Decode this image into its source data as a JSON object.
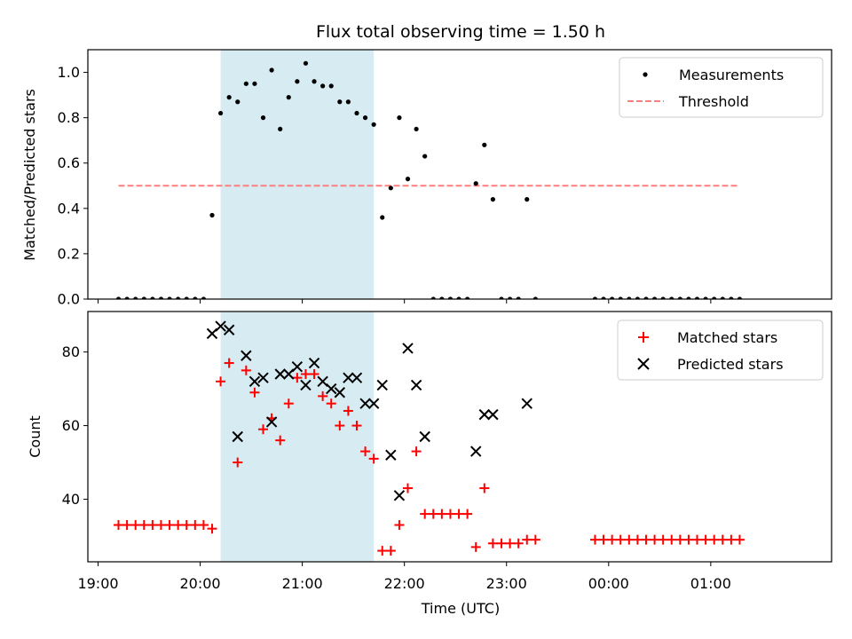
{
  "title": "Flux total observing time = 1.50 h",
  "colors": {
    "measurements": "#000000",
    "threshold": "#ff7f7f",
    "matched": "#ff0000",
    "predicted": "#000000",
    "observing_window": "#add8e6"
  },
  "chart_data": [
    {
      "type": "scatter",
      "panel": "top",
      "ylabel": "Matched/Predicted stars",
      "ylim": [
        0,
        1.1
      ],
      "yticks": [
        0.0,
        0.2,
        0.4,
        0.6,
        0.8,
        1.0
      ],
      "ytick_labels": [
        "0.0",
        "0.2",
        "0.4",
        "0.6",
        "0.8",
        "1.0"
      ],
      "xlim": [
        "18:54",
        "02:11"
      ],
      "observing_window": [
        "20:12",
        "21:42"
      ],
      "legend": {
        "position": "upper right",
        "entries": [
          "Measurements",
          "Threshold"
        ]
      },
      "threshold": {
        "name": "Threshold",
        "value": 0.5,
        "x": [
          "19:12",
          "01:17"
        ]
      },
      "series": [
        {
          "name": "Measurements",
          "points": [
            [
              "19:12",
              0.0
            ],
            [
              "19:17",
              0.0
            ],
            [
              "19:22",
              0.0
            ],
            [
              "19:27",
              0.0
            ],
            [
              "19:32",
              0.0
            ],
            [
              "19:37",
              0.0
            ],
            [
              "19:42",
              0.0
            ],
            [
              "19:47",
              0.0
            ],
            [
              "19:52",
              0.0
            ],
            [
              "19:57",
              0.0
            ],
            [
              "20:02",
              0.0
            ],
            [
              "20:07",
              0.37
            ],
            [
              "20:12",
              0.82
            ],
            [
              "20:17",
              0.89
            ],
            [
              "20:22",
              0.87
            ],
            [
              "20:27",
              0.95
            ],
            [
              "20:32",
              0.95
            ],
            [
              "20:37",
              0.8
            ],
            [
              "20:42",
              1.01
            ],
            [
              "20:47",
              0.75
            ],
            [
              "20:52",
              0.89
            ],
            [
              "20:57",
              0.96
            ],
            [
              "21:02",
              1.04
            ],
            [
              "21:07",
              0.96
            ],
            [
              "21:12",
              0.94
            ],
            [
              "21:17",
              0.94
            ],
            [
              "21:22",
              0.87
            ],
            [
              "21:27",
              0.87
            ],
            [
              "21:32",
              0.82
            ],
            [
              "21:37",
              0.8
            ],
            [
              "21:42",
              0.77
            ],
            [
              "21:47",
              0.36
            ],
            [
              "21:52",
              0.49
            ],
            [
              "21:57",
              0.8
            ],
            [
              "22:02",
              0.53
            ],
            [
              "22:07",
              0.75
            ],
            [
              "22:12",
              0.63
            ],
            [
              "22:17",
              0.0
            ],
            [
              "22:22",
              0.0
            ],
            [
              "22:27",
              0.0
            ],
            [
              "22:32",
              0.0
            ],
            [
              "22:37",
              0.0
            ],
            [
              "22:42",
              0.51
            ],
            [
              "22:47",
              0.68
            ],
            [
              "22:52",
              0.44
            ],
            [
              "22:57",
              0.0
            ],
            [
              "23:02",
              0.0
            ],
            [
              "23:07",
              0.0
            ],
            [
              "23:12",
              0.44
            ],
            [
              "23:17",
              0.0
            ],
            [
              "23:52",
              0.0
            ],
            [
              "23:57",
              0.0
            ],
            [
              "00:02",
              0.0
            ],
            [
              "00:07",
              0.0
            ],
            [
              "00:12",
              0.0
            ],
            [
              "00:17",
              0.0
            ],
            [
              "00:22",
              0.0
            ],
            [
              "00:27",
              0.0
            ],
            [
              "00:32",
              0.0
            ],
            [
              "00:37",
              0.0
            ],
            [
              "00:42",
              0.0
            ],
            [
              "00:47",
              0.0
            ],
            [
              "00:52",
              0.0
            ],
            [
              "00:57",
              0.0
            ],
            [
              "01:02",
              0.0
            ],
            [
              "01:07",
              0.0
            ],
            [
              "01:12",
              0.0
            ],
            [
              "01:17",
              0.0
            ]
          ]
        }
      ]
    },
    {
      "type": "scatter",
      "panel": "bottom",
      "xlabel": "Time (UTC)",
      "ylabel": "Count",
      "ylim": [
        23,
        91
      ],
      "yticks": [
        40,
        60,
        80
      ],
      "ytick_labels": [
        "40",
        "60",
        "80"
      ],
      "xlim": [
        "18:54",
        "02:11"
      ],
      "xticks": [
        "19:00",
        "20:00",
        "21:00",
        "22:00",
        "23:00",
        "00:00",
        "01:00"
      ],
      "observing_window": [
        "20:12",
        "21:42"
      ],
      "legend": {
        "position": "upper right",
        "entries": [
          "Matched stars",
          "Predicted stars"
        ]
      },
      "series": [
        {
          "name": "Matched stars",
          "marker": "+",
          "points": [
            [
              "19:12",
              33
            ],
            [
              "19:17",
              33
            ],
            [
              "19:22",
              33
            ],
            [
              "19:27",
              33
            ],
            [
              "19:32",
              33
            ],
            [
              "19:37",
              33
            ],
            [
              "19:42",
              33
            ],
            [
              "19:47",
              33
            ],
            [
              "19:52",
              33
            ],
            [
              "19:57",
              33
            ],
            [
              "20:02",
              33
            ],
            [
              "20:07",
              32
            ],
            [
              "20:12",
              72
            ],
            [
              "20:17",
              77
            ],
            [
              "20:22",
              50
            ],
            [
              "20:27",
              75
            ],
            [
              "20:32",
              69
            ],
            [
              "20:37",
              59
            ],
            [
              "20:42",
              62
            ],
            [
              "20:47",
              56
            ],
            [
              "20:52",
              66
            ],
            [
              "20:57",
              73
            ],
            [
              "21:02",
              74
            ],
            [
              "21:07",
              74
            ],
            [
              "21:12",
              68
            ],
            [
              "21:17",
              66
            ],
            [
              "21:22",
              60
            ],
            [
              "21:27",
              64
            ],
            [
              "21:32",
              60
            ],
            [
              "21:37",
              53
            ],
            [
              "21:42",
              51
            ],
            [
              "21:47",
              26
            ],
            [
              "21:52",
              26
            ],
            [
              "21:57",
              33
            ],
            [
              "22:02",
              43
            ],
            [
              "22:07",
              53
            ],
            [
              "22:12",
              36
            ],
            [
              "22:17",
              36
            ],
            [
              "22:22",
              36
            ],
            [
              "22:27",
              36
            ],
            [
              "22:32",
              36
            ],
            [
              "22:37",
              36
            ],
            [
              "22:42",
              27
            ],
            [
              "22:47",
              43
            ],
            [
              "22:52",
              28
            ],
            [
              "22:57",
              28
            ],
            [
              "23:02",
              28
            ],
            [
              "23:07",
              28
            ],
            [
              "23:12",
              29
            ],
            [
              "23:17",
              29
            ],
            [
              "23:52",
              29
            ],
            [
              "23:57",
              29
            ],
            [
              "00:02",
              29
            ],
            [
              "00:07",
              29
            ],
            [
              "00:12",
              29
            ],
            [
              "00:17",
              29
            ],
            [
              "00:22",
              29
            ],
            [
              "00:27",
              29
            ],
            [
              "00:32",
              29
            ],
            [
              "00:37",
              29
            ],
            [
              "00:42",
              29
            ],
            [
              "00:47",
              29
            ],
            [
              "00:52",
              29
            ],
            [
              "00:57",
              29
            ],
            [
              "01:02",
              29
            ],
            [
              "01:07",
              29
            ],
            [
              "01:12",
              29
            ],
            [
              "01:17",
              29
            ]
          ]
        },
        {
          "name": "Predicted stars",
          "marker": "x",
          "points": [
            [
              "20:07",
              85
            ],
            [
              "20:12",
              87
            ],
            [
              "20:17",
              86
            ],
            [
              "20:22",
              57
            ],
            [
              "20:27",
              79
            ],
            [
              "20:32",
              72
            ],
            [
              "20:37",
              73
            ],
            [
              "20:42",
              61
            ],
            [
              "20:47",
              74
            ],
            [
              "20:52",
              74
            ],
            [
              "20:57",
              76
            ],
            [
              "21:02",
              71
            ],
            [
              "21:07",
              77
            ],
            [
              "21:12",
              72
            ],
            [
              "21:17",
              70
            ],
            [
              "21:22",
              69
            ],
            [
              "21:27",
              73
            ],
            [
              "21:32",
              73
            ],
            [
              "21:37",
              66
            ],
            [
              "21:42",
              66
            ],
            [
              "21:47",
              71
            ],
            [
              "21:52",
              52
            ],
            [
              "21:57",
              41
            ],
            [
              "22:02",
              81
            ],
            [
              "22:07",
              71
            ],
            [
              "22:12",
              57
            ],
            [
              "22:42",
              53
            ],
            [
              "22:47",
              63
            ],
            [
              "22:52",
              63
            ],
            [
              "23:12",
              66
            ]
          ]
        }
      ]
    }
  ]
}
